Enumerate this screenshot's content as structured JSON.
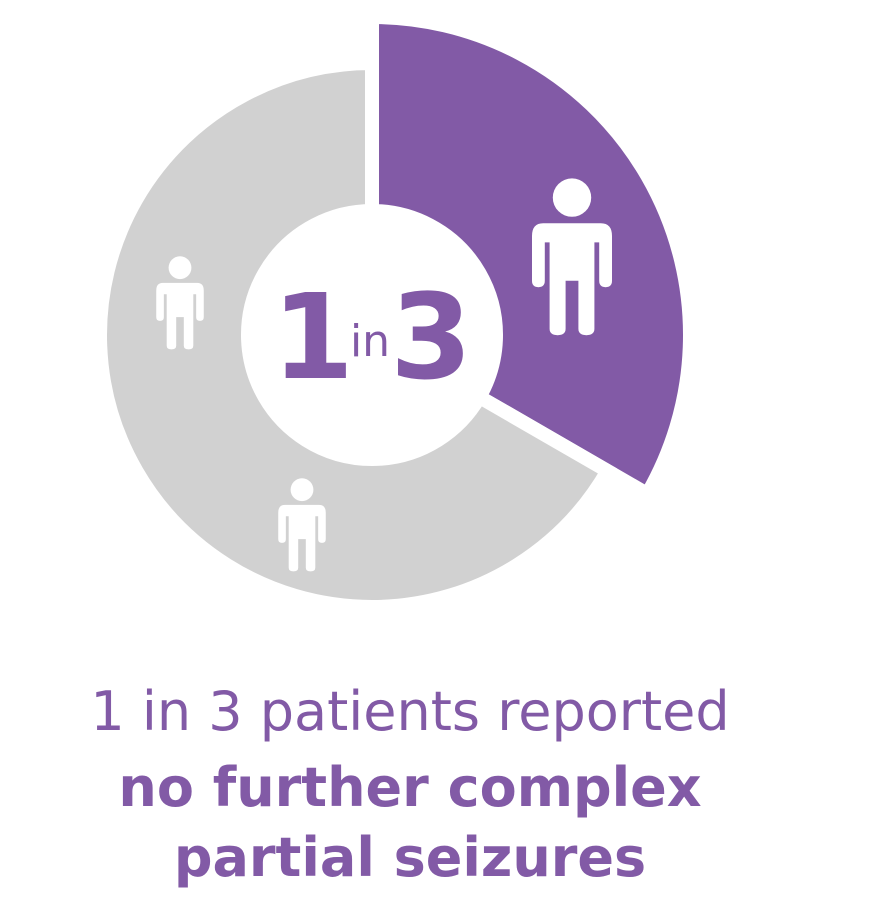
{
  "chart_data": {
    "type": "donut",
    "center_text": [
      "1",
      "in",
      "3"
    ],
    "values": [
      1,
      2
    ],
    "colors": [
      "#825aa6",
      "#d1d1d1"
    ],
    "caption": [
      "1 in 3 patients reported",
      "no further complex",
      "partial seizures"
    ]
  }
}
